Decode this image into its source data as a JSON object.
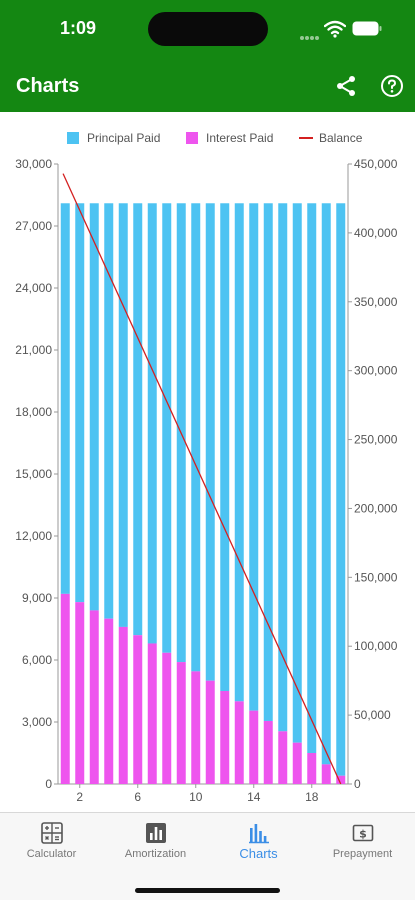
{
  "status_bar": {
    "time": "1:09"
  },
  "app_bar": {
    "title": "Charts",
    "share_icon": "share-icon",
    "help_icon": "help-circle-icon"
  },
  "legend": {
    "principal_label": "Principal Paid",
    "interest_label": "Interest Paid",
    "balance_label": "Balance"
  },
  "colors": {
    "header": "#148712",
    "principal": "#4DC3F2",
    "interest": "#EE55EE",
    "balance": "#D42020",
    "active_tab": "#3B8EE6"
  },
  "tabs": [
    {
      "label": "Calculator",
      "icon": "calculator-icon",
      "active": false
    },
    {
      "label": "Amortization",
      "icon": "bar-chart-icon",
      "active": false
    },
    {
      "label": "Charts",
      "icon": "charts-icon",
      "active": true
    },
    {
      "label": "Prepayment",
      "icon": "dollar-bill-icon",
      "active": false
    }
  ],
  "chart_data": {
    "type": "bar",
    "stacked": true,
    "x": [
      1,
      2,
      3,
      4,
      5,
      6,
      7,
      8,
      9,
      10,
      11,
      12,
      13,
      14,
      15,
      16,
      17,
      18,
      19,
      20
    ],
    "x_tick_labels": [
      "2",
      "6",
      "10",
      "14",
      "18"
    ],
    "series": [
      {
        "name": "Interest Paid",
        "axis": "left",
        "values": [
          9200,
          8800,
          8400,
          8000,
          7600,
          7200,
          6800,
          6350,
          5900,
          5450,
          5000,
          4500,
          4000,
          3550,
          3050,
          2550,
          2000,
          1500,
          950,
          400
        ]
      },
      {
        "name": "Principal Paid",
        "axis": "left",
        "values": [
          18900,
          19300,
          19700,
          20100,
          20500,
          20900,
          21300,
          21750,
          22200,
          22650,
          23100,
          23600,
          24100,
          24550,
          25050,
          25550,
          26100,
          26600,
          27150,
          27700
        ]
      },
      {
        "name": "Balance",
        "type": "line",
        "axis": "right",
        "x": [
          0,
          20
        ],
        "values": [
          443000,
          0
        ]
      }
    ],
    "y_left": {
      "ylim": [
        0,
        30000
      ],
      "ticks": [
        "0",
        "3,000",
        "6,000",
        "9,000",
        "12,000",
        "15,000",
        "18,000",
        "21,000",
        "24,000",
        "27,000",
        "30,000"
      ]
    },
    "y_right": {
      "ylim": [
        0,
        450000
      ],
      "ticks": [
        "0",
        "50,000",
        "100,000",
        "150,000",
        "200,000",
        "250,000",
        "300,000",
        "350,000",
        "400,000",
        "450,000"
      ]
    },
    "legend_position": "top",
    "grid": false
  }
}
